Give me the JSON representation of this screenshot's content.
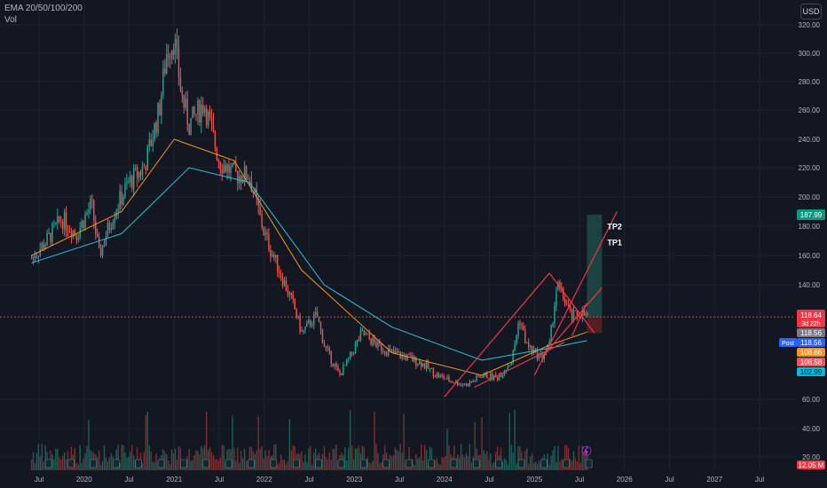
{
  "legend": {
    "indicator": "EMA 20/50/100/200",
    "volume": "Vol"
  },
  "currency_button": "USD",
  "price_labels": {
    "tp2_price": "187.99",
    "last_price": "118.64",
    "countdown": "3d 22h",
    "post_label": "Post",
    "post_price": "118.56",
    "gray_price": "118.56",
    "ema_orange": "108.66",
    "ema_red": "108.58",
    "ema_cyan": "102.99",
    "volume": "12.05 M"
  },
  "annotations": {
    "tp2": "TP2",
    "tp1": "TP1"
  },
  "colors": {
    "background": "#131722",
    "up": "#26a69a",
    "down": "#ef5350",
    "ema_orange": "#f7931a",
    "ema_cyan": "#26c6da",
    "trendline": "#f23645",
    "target_zone": "#1e4b47",
    "stop_zone": "#5b1f25"
  },
  "chart_data": {
    "type": "candlestick",
    "x_ticks": [
      "Jul",
      "2020",
      "Jul",
      "2021",
      "Jul",
      "2022",
      "Jul",
      "2023",
      "Jul",
      "2024",
      "Jul",
      "2025",
      "Jul",
      "2026",
      "Jul",
      "2027",
      "Jul"
    ],
    "y_ticks": [
      320,
      300,
      280,
      260,
      240,
      220,
      200,
      180,
      160,
      140,
      60,
      40,
      20
    ],
    "y_tick_labels": [
      "320.00",
      "300.00",
      "280.00",
      "260.00",
      "240.00",
      "220.00",
      "200.00",
      "180.00",
      "160.00",
      "140.00",
      "60.00",
      "40.00",
      "20.00"
    ],
    "ylim": [
      10,
      328
    ],
    "price_path_monthly": [
      [
        "2019-06",
        158
      ],
      [
        "2019-08",
        170
      ],
      [
        "2019-10",
        185
      ],
      [
        "2019-12",
        175
      ],
      [
        "2020-02",
        195
      ],
      [
        "2020-03",
        160
      ],
      [
        "2020-05",
        190
      ],
      [
        "2020-07",
        210
      ],
      [
        "2020-09",
        220
      ],
      [
        "2020-11",
        260
      ],
      [
        "2020-12",
        300
      ],
      [
        "2021-01",
        310
      ],
      [
        "2021-02",
        270
      ],
      [
        "2021-03",
        250
      ],
      [
        "2021-05",
        265
      ],
      [
        "2021-07",
        225
      ],
      [
        "2021-09",
        215
      ],
      [
        "2021-11",
        215
      ],
      [
        "2022-01",
        175
      ],
      [
        "2022-03",
        150
      ],
      [
        "2022-05",
        125
      ],
      [
        "2022-06",
        108
      ],
      [
        "2022-08",
        120
      ],
      [
        "2022-09",
        100
      ],
      [
        "2022-11",
        80
      ],
      [
        "2022-12",
        88
      ],
      [
        "2023-02",
        108
      ],
      [
        "2023-04",
        100
      ],
      [
        "2023-06",
        95
      ],
      [
        "2023-08",
        92
      ],
      [
        "2023-10",
        88
      ],
      [
        "2023-12",
        80
      ],
      [
        "2024-02",
        75
      ],
      [
        "2024-04",
        72
      ],
      [
        "2024-06",
        80
      ],
      [
        "2024-08",
        78
      ],
      [
        "2024-10",
        90
      ],
      [
        "2024-11",
        118
      ],
      [
        "2024-12",
        100
      ],
      [
        "2025-01",
        95
      ],
      [
        "2025-02",
        92
      ],
      [
        "2025-03",
        100
      ],
      [
        "2025-04",
        140
      ],
      [
        "2025-05",
        130
      ],
      [
        "2025-06",
        118
      ],
      [
        "2025-07",
        122
      ],
      [
        "2025-08",
        118.64
      ]
    ],
    "ema_orange_path": [
      [
        "2019-06",
        160
      ],
      [
        "2020-06",
        190
      ],
      [
        "2021-01",
        240
      ],
      [
        "2021-09",
        225
      ],
      [
        "2022-06",
        150
      ],
      [
        "2023-06",
        95
      ],
      [
        "2024-06",
        80
      ],
      [
        "2025-03",
        100
      ],
      [
        "2025-08",
        108.66
      ]
    ],
    "ema_cyan_path": [
      [
        "2019-06",
        155
      ],
      [
        "2020-06",
        175
      ],
      [
        "2021-03",
        220
      ],
      [
        "2021-11",
        210
      ],
      [
        "2022-09",
        140
      ],
      [
        "2023-06",
        112
      ],
      [
        "2024-06",
        90
      ],
      [
        "2025-03",
        98
      ],
      [
        "2025-08",
        102.99
      ]
    ],
    "trendlines": [
      {
        "from": [
          "2024-01",
          62
        ],
        "to": [
          "2025-03",
          148
        ]
      },
      {
        "from": [
          "2024-05",
          70
        ],
        "to": [
          "2025-05",
          102
        ]
      },
      {
        "from": [
          "2025-01",
          80
        ],
        "to": [
          "2025-12",
          190
        ]
      },
      {
        "from": [
          "2025-03",
          148
        ],
        "to": [
          "2025-09",
          108
        ]
      },
      {
        "from": [
          "2025-02",
          92
        ],
        "to": [
          "2025-10",
          138
        ]
      },
      {
        "from": [
          "2025-06",
          106
        ],
        "to": [
          "2025-08",
          128
        ]
      }
    ],
    "target_zone": {
      "x_from": "2025-08",
      "x_to": "2025-10",
      "y_from": 118.64,
      "y_to": 187.99
    },
    "stop_zone": {
      "x_from": "2025-08",
      "x_to": "2025-10",
      "y_from": 108,
      "y_to": 118.64
    },
    "tp_levels": {
      "TP2": 178,
      "TP1": 167
    },
    "current_price": 118.64
  }
}
